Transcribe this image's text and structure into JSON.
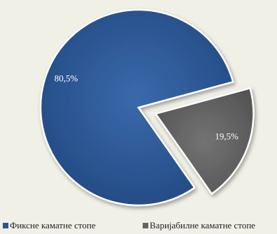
{
  "chart_data": {
    "type": "pie",
    "title": "",
    "categories": [
      "Фиксне каматне стопе",
      "Варијабилне каматне стопе"
    ],
    "values": [
      80.5,
      19.5
    ],
    "value_labels": [
      "80,5%",
      "19,5%"
    ],
    "colors": [
      "#2c5591",
      "#646464"
    ],
    "exploded": [
      false,
      true
    ],
    "legend_position": "bottom"
  }
}
